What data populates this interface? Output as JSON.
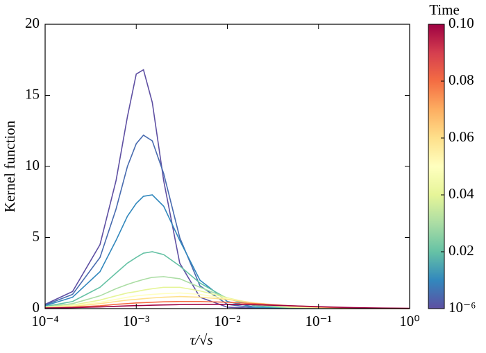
{
  "chart_data": {
    "type": "line",
    "x_label": "τ/√s",
    "y_label": "Kernel function",
    "xscale": "log",
    "xlim": [
      0.0001,
      1
    ],
    "xticks": [
      {
        "value": 0.0001,
        "label": "10⁻⁴"
      },
      {
        "value": 0.001,
        "label": "10⁻³"
      },
      {
        "value": 0.01,
        "label": "10⁻²"
      },
      {
        "value": 0.1,
        "label": "10⁻¹"
      },
      {
        "value": 1,
        "label": "10⁰"
      }
    ],
    "ylim": [
      0,
      20
    ],
    "yticks": [
      0,
      5,
      10,
      15,
      20
    ],
    "colorbar": {
      "title": "Time",
      "clim": [
        1e-06,
        0.1
      ],
      "ticks": [
        {
          "value": 1e-06,
          "label": "10⁻⁶"
        },
        0.02,
        0.04,
        0.06,
        0.08,
        {
          "value": 0.1,
          "label": "0.10"
        }
      ],
      "colormap": [
        "#5e4fa2",
        "#3288bd",
        "#66c2a5",
        "#abdda4",
        "#e6f598",
        "#ffffbf",
        "#fee08b",
        "#fdae61",
        "#f46d43",
        "#d53e4f",
        "#9e0142"
      ]
    },
    "x": [
      0.0001,
      0.0002,
      0.0004,
      0.0006,
      0.0008,
      0.001,
      0.0012,
      0.0015,
      0.002,
      0.003,
      0.005,
      0.01,
      0.02,
      0.05,
      0.1,
      0.2,
      0.5,
      1
    ],
    "series": [
      {
        "time": 1e-06,
        "values": [
          0.3,
          1.2,
          4.5,
          9,
          13.5,
          16.5,
          16.8,
          14.5,
          9,
          3.2,
          0.8,
          0.1,
          0.02,
          0,
          0,
          0,
          0,
          0
        ]
      },
      {
        "time": 0.005,
        "values": [
          0.25,
          1.0,
          3.6,
          7,
          10,
          11.6,
          12.2,
          11.8,
          9.5,
          5,
          1.6,
          0.3,
          0.05,
          0,
          0,
          0,
          0,
          0
        ]
      },
      {
        "time": 0.01,
        "values": [
          0.2,
          0.8,
          2.6,
          4.8,
          6.5,
          7.4,
          7.9,
          8.0,
          7.2,
          4.8,
          2.0,
          0.5,
          0.1,
          0.01,
          0,
          0,
          0,
          0
        ]
      },
      {
        "time": 0.02,
        "values": [
          0.15,
          0.5,
          1.5,
          2.5,
          3.2,
          3.6,
          3.9,
          4.0,
          3.8,
          3.0,
          1.8,
          0.7,
          0.2,
          0.03,
          0,
          0,
          0,
          0
        ]
      },
      {
        "time": 0.03,
        "values": [
          0.12,
          0.35,
          0.9,
          1.4,
          1.7,
          1.9,
          2.05,
          2.2,
          2.25,
          2.1,
          1.5,
          0.75,
          0.3,
          0.06,
          0.01,
          0,
          0,
          0
        ]
      },
      {
        "time": 0.04,
        "values": [
          0.1,
          0.25,
          0.6,
          0.9,
          1.1,
          1.2,
          1.3,
          1.4,
          1.5,
          1.5,
          1.25,
          0.75,
          0.35,
          0.1,
          0.03,
          0,
          0,
          0
        ]
      },
      {
        "time": 0.05,
        "values": [
          0.08,
          0.2,
          0.45,
          0.65,
          0.8,
          0.9,
          0.95,
          1.0,
          1.05,
          1.1,
          1.0,
          0.7,
          0.38,
          0.14,
          0.05,
          0.01,
          0,
          0
        ]
      },
      {
        "time": 0.06,
        "values": [
          0.06,
          0.15,
          0.35,
          0.5,
          0.6,
          0.65,
          0.7,
          0.75,
          0.8,
          0.85,
          0.8,
          0.65,
          0.4,
          0.18,
          0.08,
          0.03,
          0,
          0
        ]
      },
      {
        "time": 0.08,
        "values": [
          0.05,
          0.1,
          0.2,
          0.3,
          0.35,
          0.4,
          0.42,
          0.45,
          0.48,
          0.5,
          0.5,
          0.45,
          0.35,
          0.2,
          0.12,
          0.05,
          0.02,
          0.01
        ]
      },
      {
        "time": 0.1,
        "values": [
          0.04,
          0.07,
          0.12,
          0.16,
          0.19,
          0.21,
          0.22,
          0.24,
          0.26,
          0.28,
          0.3,
          0.3,
          0.27,
          0.2,
          0.14,
          0.08,
          0.04,
          0.02
        ]
      }
    ]
  }
}
